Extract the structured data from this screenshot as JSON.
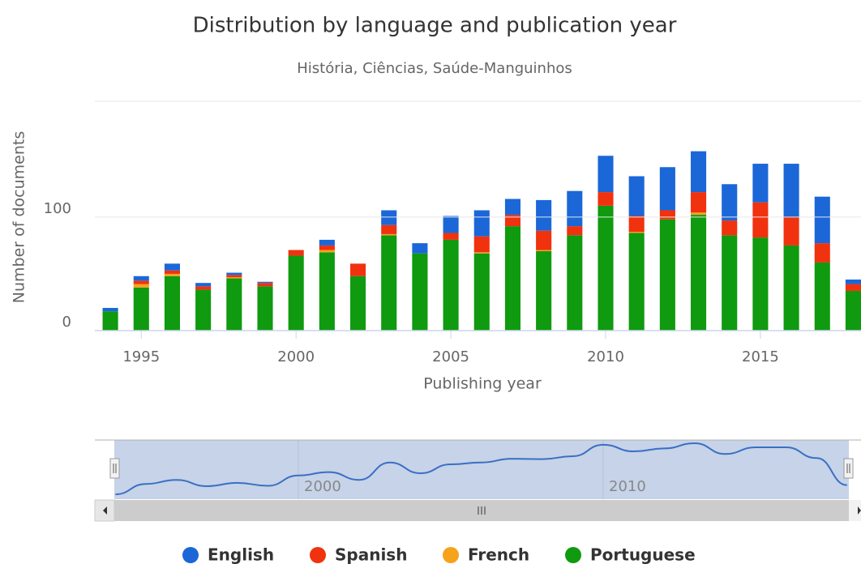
{
  "chart_data": {
    "type": "bar",
    "stacked": true,
    "title": "Distribution by language and publication year",
    "subtitle": "História, Ciências, Saúde-Manguinhos",
    "y_label": "Number of documents",
    "x_label": "Publishing year",
    "x": [
      1994,
      1995,
      1996,
      1997,
      1998,
      1999,
      2000,
      2001,
      2002,
      2003,
      2004,
      2005,
      2006,
      2007,
      2008,
      2009,
      2010,
      2011,
      2012,
      2013,
      2014,
      2015,
      2016,
      2017,
      2018
    ],
    "series": [
      {
        "name": "Portuguese",
        "color": "#0f9a0f",
        "values": [
          17,
          38,
          48,
          36,
          46,
          39,
          66,
          69,
          48,
          84,
          68,
          80,
          68,
          92,
          70,
          84,
          110,
          86,
          98,
          102,
          84,
          82,
          75,
          60,
          35
        ]
      },
      {
        "name": "French",
        "color": "#f7a21b",
        "values": [
          0,
          3,
          2,
          0,
          1,
          0,
          0,
          2,
          0,
          1,
          0,
          0,
          1,
          0,
          1,
          0,
          0,
          1,
          0,
          2,
          0,
          0,
          0,
          0,
          0
        ]
      },
      {
        "name": "Spanish",
        "color": "#f0320f",
        "values": [
          0,
          3,
          3,
          3,
          2,
          3,
          5,
          4,
          11,
          8,
          0,
          6,
          14,
          10,
          17,
          8,
          12,
          14,
          8,
          18,
          13,
          31,
          25,
          17,
          6
        ]
      },
      {
        "name": "English",
        "color": "#1b67d8",
        "values": [
          3,
          4,
          6,
          3,
          2,
          1,
          0,
          5,
          0,
          13,
          9,
          15,
          23,
          14,
          27,
          31,
          32,
          35,
          38,
          36,
          32,
          34,
          47,
          41,
          4
        ]
      }
    ],
    "legend_order": [
      3,
      2,
      1,
      0
    ],
    "xlim": [
      1993.5,
      2018.25
    ],
    "xticks": [
      1995,
      2000,
      2005,
      2010,
      2015
    ],
    "ylim": [
      0,
      202
    ],
    "yticks": [
      0,
      100
    ],
    "grid": true,
    "legend": "bottom",
    "navigator_xticks": [
      2000,
      2010
    ]
  }
}
